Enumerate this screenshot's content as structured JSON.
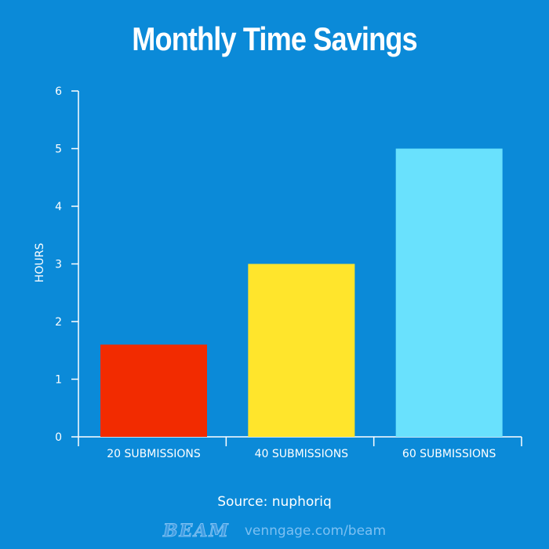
{
  "page": {
    "background_color": "#0b8ad8",
    "source": "Source: nuphoriq",
    "footer_brand": "BEAM",
    "footer_url": "venngage.com/beam"
  },
  "chart_data": {
    "type": "bar",
    "title": "Monthly Time Savings",
    "xlabel": "",
    "ylabel": "HOURS",
    "categories": [
      "20 SUBMISSIONS",
      "40 SUBMISSIONS",
      "60 SUBMISSIONS"
    ],
    "values": [
      1.6,
      3.0,
      5.0
    ],
    "colors": [
      "#f22b00",
      "#ffe52c",
      "#69e1fd"
    ],
    "ylim": [
      0,
      6
    ],
    "yticks": [
      0,
      1,
      2,
      3,
      4,
      5,
      6
    ],
    "grid": false,
    "legend": "none",
    "axis_color": "#ffffff"
  }
}
